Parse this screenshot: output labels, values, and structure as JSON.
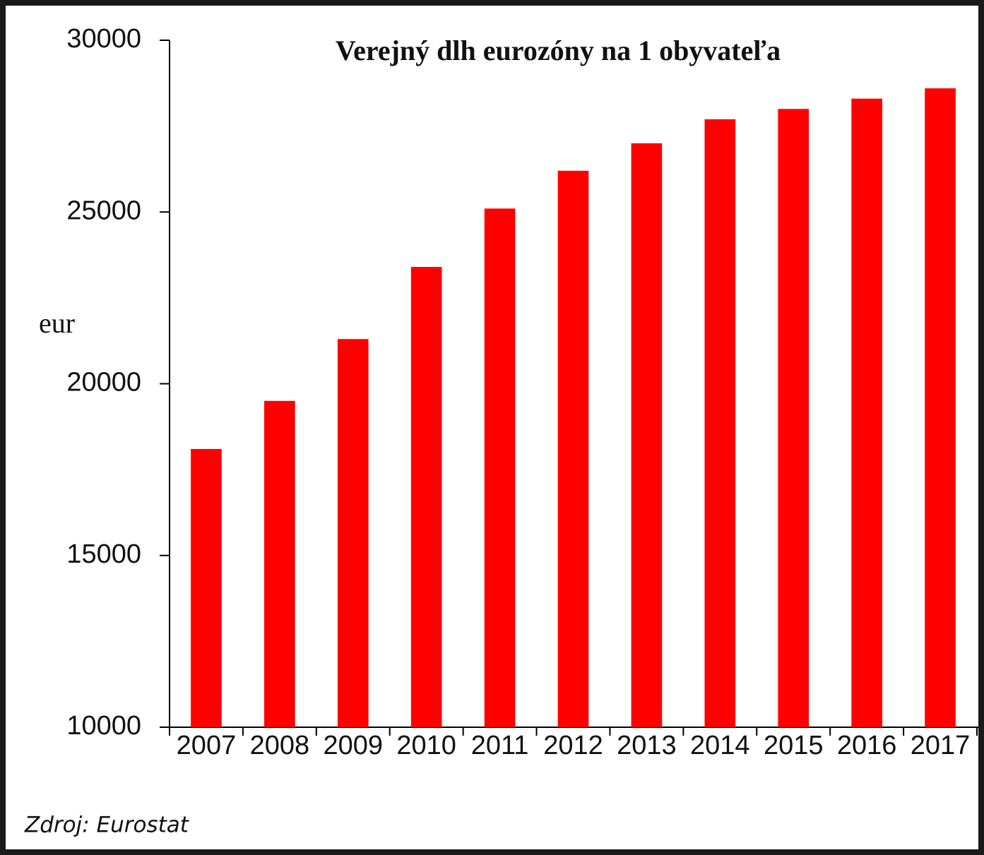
{
  "chart_data": {
    "type": "bar",
    "title": "Verejný dlh eurozóny na 1 obyvateľa",
    "y_label": "eur",
    "source": "Zdroj: Eurostat",
    "categories": [
      "2007",
      "2008",
      "2009",
      "2010",
      "2011",
      "2012",
      "2013",
      "2014",
      "2015",
      "2016",
      "2017"
    ],
    "values": [
      18100,
      19500,
      21300,
      23400,
      25100,
      26200,
      27000,
      27700,
      28000,
      28300,
      28600
    ],
    "color": "#ff0000",
    "ylim": [
      10000,
      30000
    ],
    "yticks": [
      10000,
      15000,
      20000,
      25000,
      30000
    ],
    "grid": false
  }
}
